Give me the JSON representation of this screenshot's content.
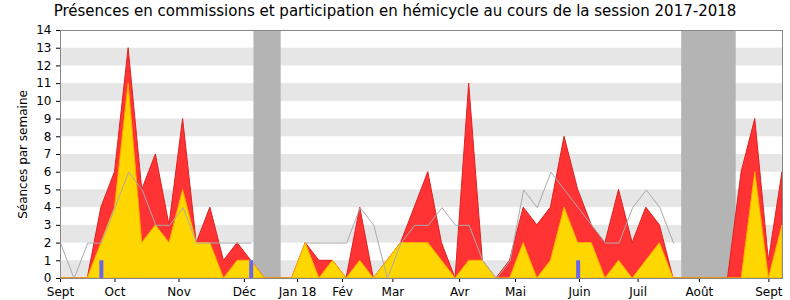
{
  "chart_data": {
    "type": "area",
    "title": "Présences en commissions et participation en hémicycle au cours de la session 2017-2018",
    "y_label": "Séances par semaine",
    "x": [
      0,
      1,
      2,
      3,
      4,
      5,
      6,
      7,
      8,
      9,
      10,
      11,
      12,
      13,
      14,
      15,
      16,
      17,
      18,
      19,
      20,
      21,
      22,
      23,
      24,
      25,
      26,
      27,
      28,
      29,
      30,
      31,
      32,
      33,
      34,
      35,
      36,
      37,
      38,
      39,
      40,
      41,
      42,
      43,
      44,
      45,
      46,
      47,
      48,
      49,
      50,
      51,
      52,
      53
    ],
    "xlim": [
      0,
      53
    ],
    "xticks": [
      {
        "value": 0,
        "label": "Sept"
      },
      {
        "value": 4,
        "label": "Oct"
      },
      {
        "value": 8.7,
        "label": "Nov"
      },
      {
        "value": 13.5,
        "label": "Déc"
      },
      {
        "value": 17.4,
        "label": "Jan 18"
      },
      {
        "value": 20.7,
        "label": "Fév"
      },
      {
        "value": 24.4,
        "label": "Mar"
      },
      {
        "value": 29.3,
        "label": "Avr"
      },
      {
        "value": 33.4,
        "label": "Mai"
      },
      {
        "value": 38.1,
        "label": "Juin"
      },
      {
        "value": 42.4,
        "label": "Juil"
      },
      {
        "value": 46.9,
        "label": "Août"
      },
      {
        "value": 52,
        "label": "Sept"
      }
    ],
    "ylim": [
      0,
      14
    ],
    "yticks": [
      0,
      1,
      2,
      3,
      4,
      5,
      6,
      7,
      8,
      9,
      10,
      11,
      12,
      13,
      14
    ],
    "grid": true,
    "vacances": [
      [
        14.2,
        16.2
      ],
      [
        45.6,
        49.6
      ]
    ],
    "series": [
      {
        "type": "area",
        "color": "#ff3333",
        "values": [
          0,
          0,
          0,
          4,
          6,
          13,
          5,
          7,
          3,
          9,
          2,
          4,
          1,
          2,
          1,
          0,
          0,
          0,
          2,
          1,
          1,
          0,
          4,
          0,
          1,
          2,
          4,
          6,
          2,
          0,
          11,
          1,
          0,
          1,
          4,
          3,
          4,
          8,
          5,
          3,
          2,
          5,
          2,
          4,
          3,
          0,
          0,
          0,
          0,
          0,
          6,
          9,
          1,
          6
        ]
      },
      {
        "type": "area",
        "color": "#ffd700",
        "values": [
          0,
          0,
          0,
          2,
          4,
          11,
          2,
          3,
          2,
          5,
          2,
          2,
          0,
          1,
          1,
          0,
          0,
          0,
          2,
          0,
          1,
          0,
          1,
          0,
          1,
          2,
          2,
          2,
          1,
          0,
          1,
          1,
          0,
          0,
          2,
          0,
          1,
          4,
          2,
          2,
          0,
          1,
          0,
          1,
          2,
          0,
          0,
          0,
          0,
          0,
          0,
          6,
          0,
          3
        ]
      },
      {
        "type": "line",
        "color": "#aaaaaa",
        "values": [
          2,
          0,
          2,
          2,
          4,
          6,
          5,
          3,
          3,
          4,
          2,
          2,
          2,
          2,
          2,
          null,
          null,
          null,
          2,
          2,
          2,
          2,
          4,
          3,
          0,
          2,
          3,
          3,
          4,
          3,
          3,
          1,
          0,
          1,
          5,
          4,
          6,
          5,
          4,
          3,
          2,
          2,
          4,
          5,
          4,
          2,
          null,
          null,
          null,
          null,
          null,
          null,
          null,
          null
        ]
      },
      {
        "type": "bar",
        "color": "#6666ee",
        "values": [
          0,
          0,
          0,
          1,
          0,
          0,
          0,
          0,
          0,
          0,
          0,
          0,
          0,
          0,
          1,
          0,
          0,
          0,
          0,
          0,
          0,
          0,
          0,
          0,
          0,
          0,
          0,
          0,
          0,
          0,
          0,
          0,
          0,
          0,
          0,
          0,
          0,
          0,
          1,
          0,
          0,
          0,
          0,
          0,
          0,
          0,
          0,
          0,
          0,
          0,
          0,
          0,
          0,
          0
        ]
      }
    ]
  }
}
